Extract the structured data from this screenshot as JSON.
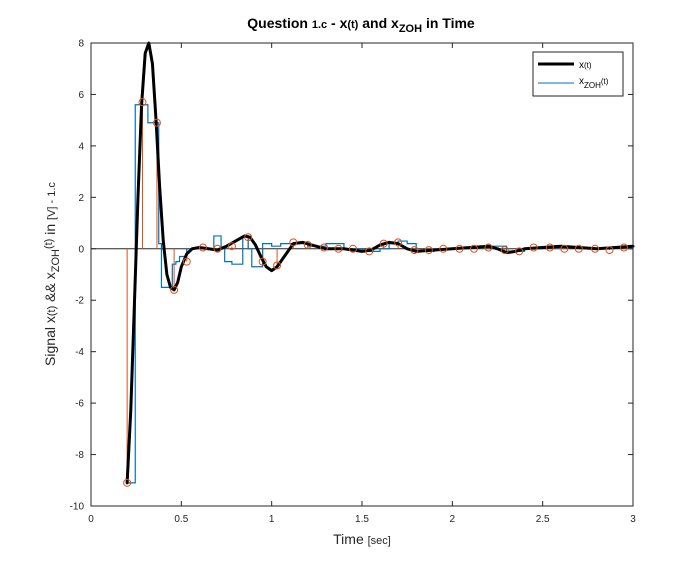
{
  "chart_data": {
    "type": "line",
    "title": {
      "prefix": "Question ",
      "prefix_small": "1.c",
      "middle": " - x",
      "middle_small": "(t)",
      "and": " and x",
      "sub": "ZOH",
      "suffix": " in Time"
    },
    "xlabel": {
      "main": "Time ",
      "small": "[sec]"
    },
    "ylabel": {
      "part1": "Signal x",
      "part1_small": "(t)",
      "part2": " && x",
      "sub": "ZOH",
      "part3_small": "(t)",
      "part4": " in ",
      "part4_small": "[V] - 1.c"
    },
    "xlim": [
      0,
      3
    ],
    "ylim": [
      -10,
      8
    ],
    "xticks": [
      0,
      0.5,
      1,
      1.5,
      2,
      2.5,
      3
    ],
    "xtick_labels": [
      "0",
      "0.5",
      "1",
      "1.5",
      "2",
      "2.5",
      "3"
    ],
    "yticks": [
      -10,
      -8,
      -6,
      -4,
      -2,
      0,
      2,
      4,
      6,
      8
    ],
    "ytick_labels": [
      "-10",
      "-8",
      "-6",
      "-4",
      "-2",
      "0",
      "2",
      "4",
      "6",
      "8"
    ],
    "grid": false,
    "legend_location": "top-right",
    "legend": [
      {
        "main": "x",
        "small": "(t)"
      },
      {
        "main": "x",
        "sub": "ZOH",
        "small": "(t)"
      }
    ],
    "colors": {
      "x": "#000000",
      "zoh": "#0072BD",
      "samples": "#D95319",
      "axis": "#262626"
    },
    "series": [
      {
        "name": "x(t)",
        "style": "thick-line",
        "x": [
          0.2,
          0.22,
          0.24,
          0.26,
          0.28,
          0.3,
          0.32,
          0.34,
          0.36,
          0.38,
          0.4,
          0.42,
          0.44,
          0.46,
          0.48,
          0.5,
          0.53,
          0.56,
          0.6,
          0.65,
          0.7,
          0.75,
          0.8,
          0.85,
          0.88,
          0.91,
          0.94,
          0.97,
          1.0,
          1.03,
          1.07,
          1.12,
          1.17,
          1.22,
          1.3,
          1.4,
          1.5,
          1.55,
          1.6,
          1.65,
          1.7,
          1.75,
          1.8,
          1.9,
          2.0,
          2.1,
          2.2,
          2.25,
          2.3,
          2.35,
          2.4,
          2.5,
          2.6,
          2.7,
          2.8,
          2.9,
          3.0
        ],
        "y": [
          -9.1,
          -6.3,
          -2.2,
          2.0,
          5.6,
          7.6,
          8.0,
          7.2,
          5.0,
          2.4,
          0.3,
          -1.0,
          -1.5,
          -1.6,
          -1.3,
          -0.7,
          -0.2,
          0.0,
          0.05,
          0.0,
          -0.05,
          0.1,
          0.3,
          0.5,
          0.45,
          0.15,
          -0.3,
          -0.7,
          -0.85,
          -0.7,
          -0.3,
          0.2,
          0.25,
          0.15,
          0.0,
          0.0,
          -0.1,
          -0.05,
          0.15,
          0.25,
          0.2,
          0.0,
          -0.1,
          -0.05,
          0.0,
          0.05,
          0.1,
          0.0,
          -0.15,
          -0.1,
          0.0,
          0.05,
          0.1,
          0.05,
          0.0,
          0.05,
          0.1
        ]
      },
      {
        "name": "xZOH(t)",
        "style": "step-line",
        "x": [
          0.2,
          0.245,
          0.29,
          0.315,
          0.34,
          0.355,
          0.375,
          0.39,
          0.425,
          0.45,
          0.47,
          0.49,
          0.53,
          0.6,
          0.64,
          0.68,
          0.72,
          0.74,
          0.78,
          0.84,
          0.87,
          0.89,
          0.92,
          0.95,
          1.0,
          1.05,
          1.1,
          1.15,
          1.2,
          1.25,
          1.3,
          1.35,
          1.4,
          1.45,
          1.5,
          1.55,
          1.6,
          1.65,
          1.7,
          1.75,
          1.8,
          1.9,
          2.0,
          2.1,
          2.2,
          2.3,
          2.4,
          2.5,
          2.6,
          2.7,
          2.8,
          2.9,
          3.0
        ],
        "y": [
          -9.1,
          5.6,
          5.6,
          4.9,
          4.9,
          4.9,
          0.2,
          -1.5,
          -1.5,
          -0.6,
          -0.5,
          -0.3,
          0.0,
          0.0,
          0.0,
          0.5,
          0.0,
          -0.5,
          -0.6,
          0.5,
          0.0,
          -0.7,
          -0.7,
          0.2,
          0.1,
          0.2,
          0.2,
          0.2,
          0.1,
          0.1,
          0.2,
          0.2,
          0.0,
          0.0,
          -0.1,
          -0.1,
          0.0,
          0.2,
          0.3,
          0.2,
          -0.1,
          0.0,
          0.0,
          0.05,
          0.1,
          -0.1,
          0.0,
          0.05,
          0.05,
          0.0,
          0.0,
          0.05,
          0.05
        ]
      },
      {
        "name": "samples",
        "style": "stem",
        "x": [
          0.2,
          0.285,
          0.365,
          0.46,
          0.53,
          0.62,
          0.7,
          0.78,
          0.87,
          0.95,
          1.03,
          1.12,
          1.2,
          1.29,
          1.37,
          1.45,
          1.54,
          1.62,
          1.7,
          1.79,
          1.87,
          1.95,
          2.04,
          2.12,
          2.2,
          2.29,
          2.37,
          2.45,
          2.54,
          2.62,
          2.7,
          2.79,
          2.87,
          2.95
        ],
        "y": [
          -9.1,
          5.7,
          4.9,
          -1.6,
          -0.5,
          0.05,
          0.0,
          0.1,
          0.45,
          -0.5,
          -0.65,
          0.25,
          0.15,
          0.05,
          0.0,
          0.0,
          -0.1,
          0.2,
          0.25,
          -0.05,
          -0.05,
          0.0,
          0.0,
          0.0,
          0.05,
          -0.05,
          -0.1,
          0.05,
          0.05,
          0.0,
          0.0,
          0.0,
          -0.05,
          0.05
        ]
      }
    ]
  }
}
